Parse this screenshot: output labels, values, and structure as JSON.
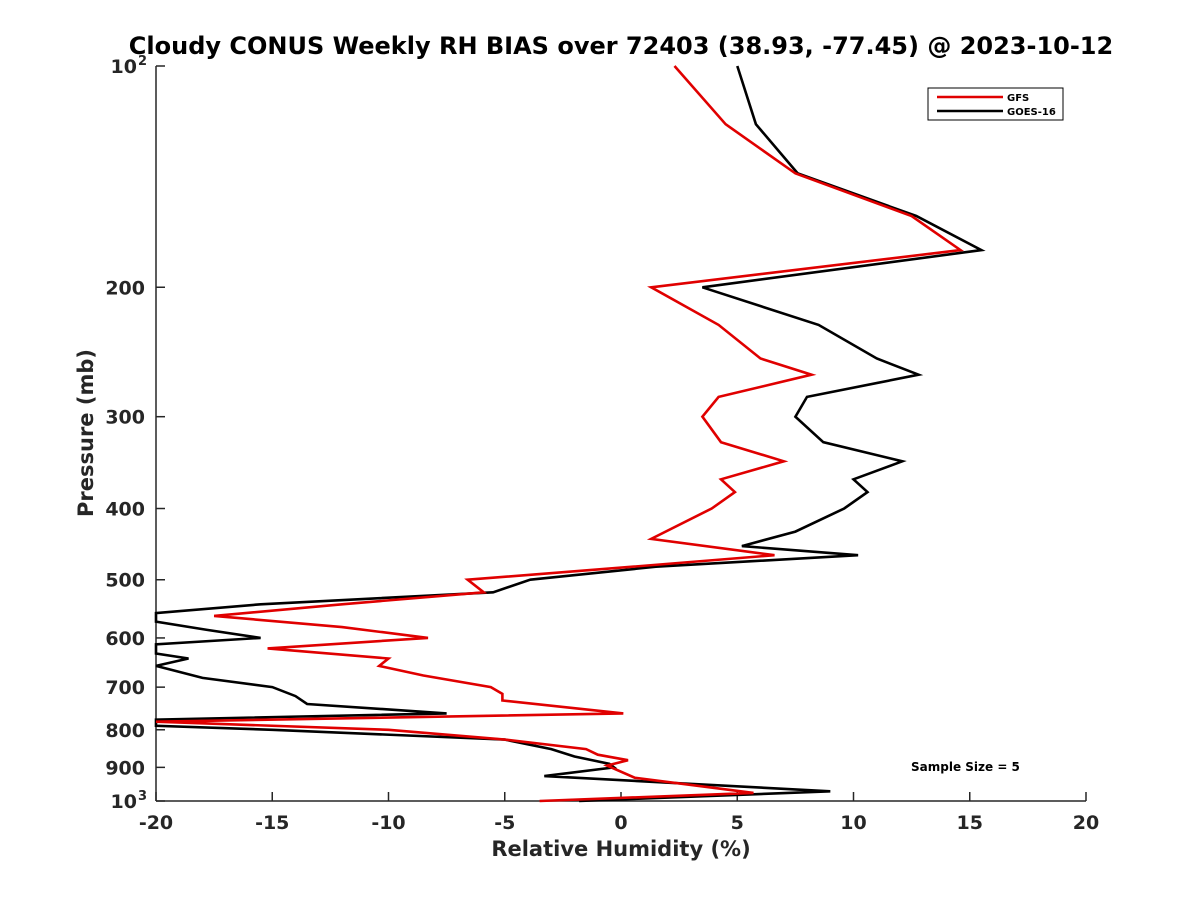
{
  "chart_data": {
    "type": "line",
    "title": "Cloudy CONUS Weekly RH BIAS over 72403 (38.93, -77.45) @ 2023-10-12",
    "xlabel": "Relative Humidity (%)",
    "ylabel": "Pressure (mb)",
    "xlim": [
      -20,
      20
    ],
    "ylim": [
      100,
      1000
    ],
    "y_scale": "log",
    "y_reversed": true,
    "x_ticks": [
      {
        "value": -20,
        "label": "-20"
      },
      {
        "value": -15,
        "label": "-15"
      },
      {
        "value": -10,
        "label": "-10"
      },
      {
        "value": -5,
        "label": "-5"
      },
      {
        "value": 0,
        "label": "0"
      },
      {
        "value": 5,
        "label": "5"
      },
      {
        "value": 10,
        "label": "10"
      },
      {
        "value": 15,
        "label": "15"
      },
      {
        "value": 20,
        "label": "20"
      }
    ],
    "y_ticks": [
      {
        "value": 100,
        "label": "10",
        "exp": "2"
      },
      {
        "value": 200,
        "label": "200"
      },
      {
        "value": 300,
        "label": "300"
      },
      {
        "value": 400,
        "label": "400"
      },
      {
        "value": 500,
        "label": "500"
      },
      {
        "value": 600,
        "label": "600"
      },
      {
        "value": 700,
        "label": "700"
      },
      {
        "value": 800,
        "label": "800"
      },
      {
        "value": 900,
        "label": "900"
      },
      {
        "value": 1000,
        "label": "10",
        "exp": "3"
      }
    ],
    "grid": false,
    "legend": "top-right",
    "annotation": "Sample Size = 5",
    "series": [
      {
        "name": "GFS",
        "color": "#e00000",
        "points": [
          {
            "x": 2.3,
            "y": 100
          },
          {
            "x": 4.5,
            "y": 120
          },
          {
            "x": 7.5,
            "y": 140
          },
          {
            "x": 12.5,
            "y": 160
          },
          {
            "x": 14.6,
            "y": 178
          },
          {
            "x": 1.3,
            "y": 200
          },
          {
            "x": 4.2,
            "y": 225
          },
          {
            "x": 6.0,
            "y": 250
          },
          {
            "x": 8.2,
            "y": 263
          },
          {
            "x": 4.2,
            "y": 282
          },
          {
            "x": 3.5,
            "y": 300
          },
          {
            "x": 4.3,
            "y": 325
          },
          {
            "x": 7.0,
            "y": 345
          },
          {
            "x": 4.3,
            "y": 365
          },
          {
            "x": 4.9,
            "y": 380
          },
          {
            "x": 3.9,
            "y": 400
          },
          {
            "x": 1.3,
            "y": 440
          },
          {
            "x": 6.6,
            "y": 463
          },
          {
            "x": 0.5,
            "y": 480
          },
          {
            "x": -6.6,
            "y": 500
          },
          {
            "x": -5.9,
            "y": 520
          },
          {
            "x": -12.0,
            "y": 540
          },
          {
            "x": -17.5,
            "y": 560
          },
          {
            "x": -12.0,
            "y": 580
          },
          {
            "x": -8.3,
            "y": 600
          },
          {
            "x": -15.2,
            "y": 620
          },
          {
            "x": -10.0,
            "y": 640
          },
          {
            "x": -10.4,
            "y": 655
          },
          {
            "x": -8.5,
            "y": 675
          },
          {
            "x": -5.6,
            "y": 700
          },
          {
            "x": -5.1,
            "y": 715
          },
          {
            "x": -5.1,
            "y": 730
          },
          {
            "x": 0.1,
            "y": 760
          },
          {
            "x": -20.0,
            "y": 780
          },
          {
            "x": -10.0,
            "y": 800
          },
          {
            "x": -5.0,
            "y": 825
          },
          {
            "x": -1.5,
            "y": 850
          },
          {
            "x": -1.0,
            "y": 865
          },
          {
            "x": 0.3,
            "y": 880
          },
          {
            "x": -0.6,
            "y": 895
          },
          {
            "x": 0.6,
            "y": 930
          },
          {
            "x": 5.7,
            "y": 975
          },
          {
            "x": -3.5,
            "y": 1000
          }
        ]
      },
      {
        "name": "GOES-16",
        "color": "#000000",
        "points": [
          {
            "x": 5.0,
            "y": 100
          },
          {
            "x": 5.8,
            "y": 120
          },
          {
            "x": 7.6,
            "y": 140
          },
          {
            "x": 12.7,
            "y": 160
          },
          {
            "x": 15.5,
            "y": 178
          },
          {
            "x": 3.5,
            "y": 200
          },
          {
            "x": 8.5,
            "y": 225
          },
          {
            "x": 11.0,
            "y": 250
          },
          {
            "x": 12.8,
            "y": 263
          },
          {
            "x": 8.0,
            "y": 282
          },
          {
            "x": 7.5,
            "y": 300
          },
          {
            "x": 8.7,
            "y": 325
          },
          {
            "x": 12.1,
            "y": 345
          },
          {
            "x": 10.0,
            "y": 365
          },
          {
            "x": 10.6,
            "y": 380
          },
          {
            "x": 9.6,
            "y": 400
          },
          {
            "x": 7.5,
            "y": 430
          },
          {
            "x": 5.2,
            "y": 450
          },
          {
            "x": 10.2,
            "y": 463
          },
          {
            "x": 1.5,
            "y": 480
          },
          {
            "x": -3.9,
            "y": 500
          },
          {
            "x": -5.5,
            "y": 520
          },
          {
            "x": -15.5,
            "y": 540
          },
          {
            "x": -20.0,
            "y": 555
          },
          {
            "x": -20.0,
            "y": 570
          },
          {
            "x": -17.8,
            "y": 585
          },
          {
            "x": -15.5,
            "y": 600
          },
          {
            "x": -20.0,
            "y": 612
          },
          {
            "x": -20.0,
            "y": 630
          },
          {
            "x": -18.6,
            "y": 640
          },
          {
            "x": -20.0,
            "y": 655
          },
          {
            "x": -18.0,
            "y": 680
          },
          {
            "x": -15.0,
            "y": 700
          },
          {
            "x": -14.0,
            "y": 720
          },
          {
            "x": -13.5,
            "y": 738
          },
          {
            "x": -7.5,
            "y": 760
          },
          {
            "x": -20.0,
            "y": 775
          },
          {
            "x": -20.0,
            "y": 790
          },
          {
            "x": -15.0,
            "y": 800
          },
          {
            "x": -5.0,
            "y": 825
          },
          {
            "x": -3.0,
            "y": 850
          },
          {
            "x": -2.0,
            "y": 870
          },
          {
            "x": -0.5,
            "y": 890
          },
          {
            "x": -0.3,
            "y": 900
          },
          {
            "x": -3.3,
            "y": 925
          },
          {
            "x": 9.0,
            "y": 970
          },
          {
            "x": -1.8,
            "y": 1000
          }
        ]
      }
    ]
  }
}
